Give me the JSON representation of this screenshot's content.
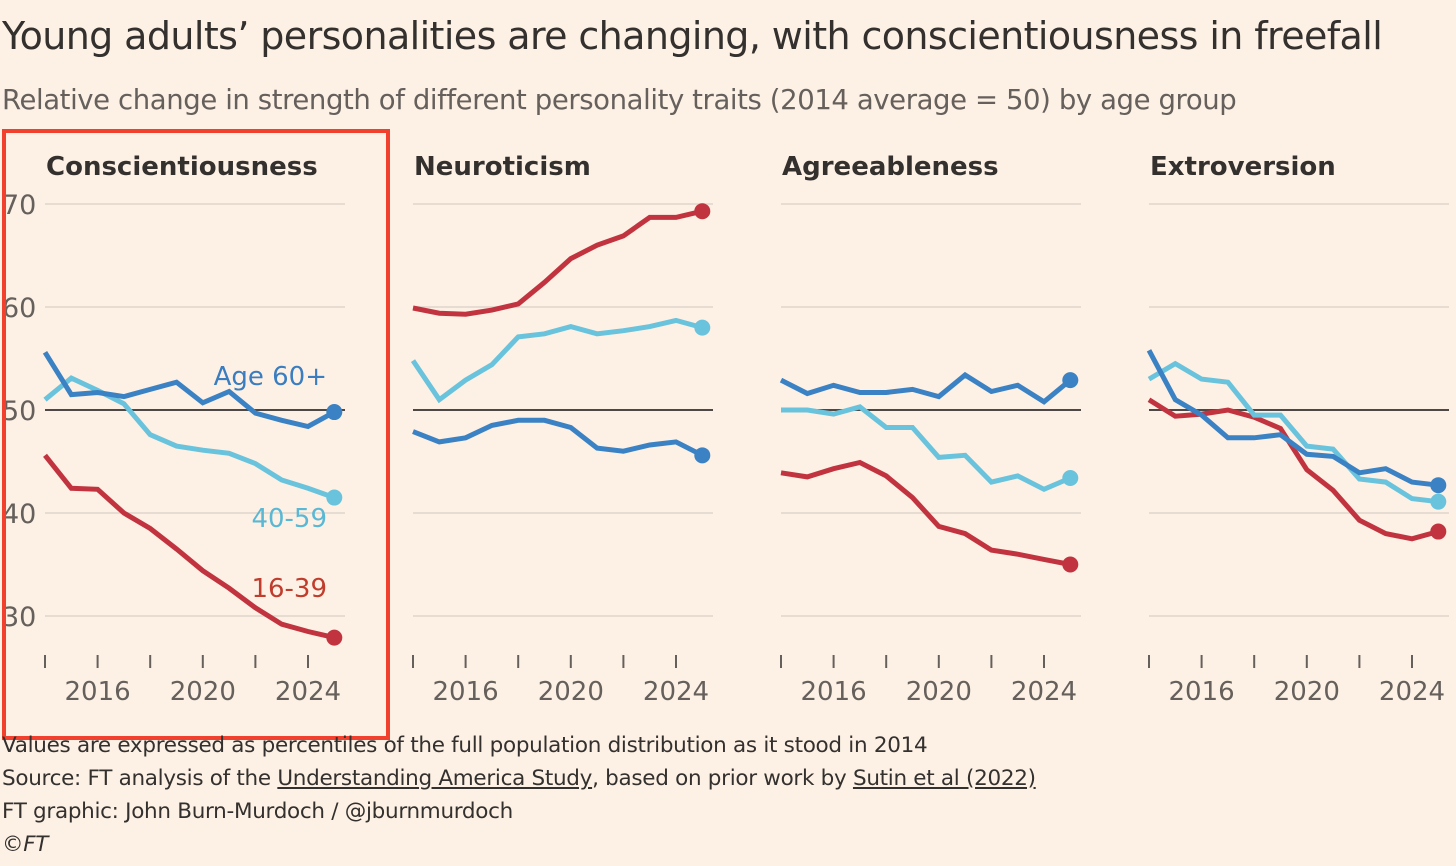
{
  "title": "Young adults’ personalities are changing, with conscientiousness in freefall",
  "subtitle": "Relative change in strength of different personality traits (2014 average = 50) by age group",
  "footer": {
    "note": "Values are expressed as percentiles of the full population distribution as it stood in 2014",
    "source_prefix": "Source: FT analysis of the ",
    "source_link1": "Understanding America Study",
    "source_middle": ", based on prior work by ",
    "source_link2": "Sutin et al (2022)",
    "credit": "FT graphic: John Burn-Murdoch / @jburnmurdoch",
    "copyright": "©FT"
  },
  "colors": {
    "background": "#fdf1e5",
    "young": "#c1343f",
    "middle": "#6ac3dc",
    "old": "#3b82c4",
    "highlight": "#f2402f",
    "baseline": "#4d4845",
    "grid": "#e6dcd1"
  },
  "chart_data": [
    {
      "type": "line",
      "title": "Conscientiousness",
      "x": [
        2014,
        2015,
        2016,
        2017,
        2018,
        2019,
        2020,
        2021,
        2022,
        2023,
        2024,
        2025
      ],
      "xticks": [
        2014,
        2016,
        2018,
        2020,
        2022,
        2024
      ],
      "xtick_labels": {
        "2016": "2016",
        "2020": "2020",
        "2024": "2024"
      },
      "yticks": [
        30,
        40,
        50,
        60,
        70
      ],
      "ytick_labels": [
        "30",
        "40",
        "50",
        "60",
        "70"
      ],
      "ylim": [
        27,
        71
      ],
      "baseline": 50,
      "series": [
        {
          "name": "16-39",
          "label": "16-39",
          "color": "#c1343f",
          "values": [
            45.6,
            42.4,
            42.3,
            40.0,
            38.5,
            36.5,
            34.4,
            32.7,
            30.8,
            29.2,
            28.5,
            27.9
          ]
        },
        {
          "name": "40-59",
          "label": "40-59",
          "color": "#6ac3dc",
          "values": [
            51.0,
            53.1,
            51.9,
            50.6,
            47.6,
            46.5,
            46.1,
            45.8,
            44.8,
            43.2,
            42.4,
            41.5
          ]
        },
        {
          "name": "Age 60+",
          "label": "Age 60+",
          "color": "#3b82c4",
          "values": [
            55.6,
            51.5,
            51.7,
            51.3,
            52.0,
            52.7,
            50.7,
            51.8,
            49.7,
            49.0,
            48.4,
            49.8
          ]
        }
      ]
    },
    {
      "type": "line",
      "title": "Neuroticism",
      "x": [
        2014,
        2015,
        2016,
        2017,
        2018,
        2019,
        2020,
        2021,
        2022,
        2023,
        2024,
        2025
      ],
      "xticks": [
        2014,
        2016,
        2018,
        2020,
        2022,
        2024
      ],
      "xtick_labels": {
        "2016": "2016",
        "2020": "2020",
        "2024": "2024"
      },
      "yticks": [
        30,
        40,
        50,
        60,
        70
      ],
      "ylim": [
        27,
        71
      ],
      "baseline": 50,
      "series": [
        {
          "name": "16-39",
          "color": "#c1343f",
          "values": [
            59.9,
            59.4,
            59.3,
            59.7,
            60.3,
            62.4,
            64.7,
            66.0,
            66.9,
            68.7,
            68.7,
            69.3
          ]
        },
        {
          "name": "40-59",
          "color": "#6ac3dc",
          "values": [
            54.8,
            51.0,
            52.9,
            54.4,
            57.1,
            57.4,
            58.1,
            57.4,
            57.7,
            58.1,
            58.7,
            58.0
          ]
        },
        {
          "name": "Age 60+",
          "color": "#3b82c4",
          "values": [
            47.9,
            46.9,
            47.3,
            48.5,
            49.0,
            49.0,
            48.3,
            46.3,
            46.0,
            46.6,
            46.9,
            45.6
          ]
        }
      ]
    },
    {
      "type": "line",
      "title": "Agreeableness",
      "x": [
        2014,
        2015,
        2016,
        2017,
        2018,
        2019,
        2020,
        2021,
        2022,
        2023,
        2024,
        2025
      ],
      "xticks": [
        2014,
        2016,
        2018,
        2020,
        2022,
        2024
      ],
      "xtick_labels": {
        "2016": "2016",
        "2020": "2020",
        "2024": "2024"
      },
      "yticks": [
        30,
        40,
        50,
        60,
        70
      ],
      "ylim": [
        27,
        71
      ],
      "baseline": 50,
      "series": [
        {
          "name": "16-39",
          "color": "#c1343f",
          "values": [
            43.9,
            43.5,
            44.3,
            44.9,
            43.6,
            41.5,
            38.7,
            38.0,
            36.4,
            36.0,
            35.5,
            35.0
          ]
        },
        {
          "name": "40-59",
          "color": "#6ac3dc",
          "values": [
            50.0,
            50.0,
            49.6,
            50.3,
            48.3,
            48.3,
            45.4,
            45.6,
            43.0,
            43.6,
            42.3,
            43.4
          ]
        },
        {
          "name": "Age 60+",
          "color": "#3b82c4",
          "values": [
            52.9,
            51.6,
            52.4,
            51.7,
            51.7,
            52.0,
            51.3,
            53.4,
            51.8,
            52.4,
            50.8,
            52.9
          ]
        }
      ]
    },
    {
      "type": "line",
      "title": "Extroversion",
      "x": [
        2014,
        2015,
        2016,
        2017,
        2018,
        2019,
        2020,
        2021,
        2022,
        2023,
        2024,
        2025
      ],
      "xticks": [
        2014,
        2016,
        2018,
        2020,
        2022,
        2024
      ],
      "xtick_labels": {
        "2016": "2016",
        "2020": "2020",
        "2024": "2024"
      },
      "yticks": [
        30,
        40,
        50,
        60,
        70
      ],
      "ylim": [
        27,
        71
      ],
      "baseline": 50,
      "series": [
        {
          "name": "16-39",
          "color": "#c1343f",
          "values": [
            51.0,
            49.4,
            49.6,
            50.0,
            49.3,
            48.2,
            44.2,
            42.2,
            39.3,
            38.0,
            37.5,
            38.2
          ]
        },
        {
          "name": "40-59",
          "color": "#6ac3dc",
          "values": [
            53.0,
            54.5,
            53.0,
            52.7,
            49.5,
            49.5,
            46.5,
            46.2,
            43.3,
            43.0,
            41.4,
            41.1
          ]
        },
        {
          "name": "Age 60+",
          "color": "#3b82c4",
          "values": [
            55.8,
            51.0,
            49.5,
            47.3,
            47.3,
            47.6,
            45.7,
            45.5,
            43.9,
            44.3,
            43.0,
            42.7
          ]
        }
      ]
    }
  ]
}
